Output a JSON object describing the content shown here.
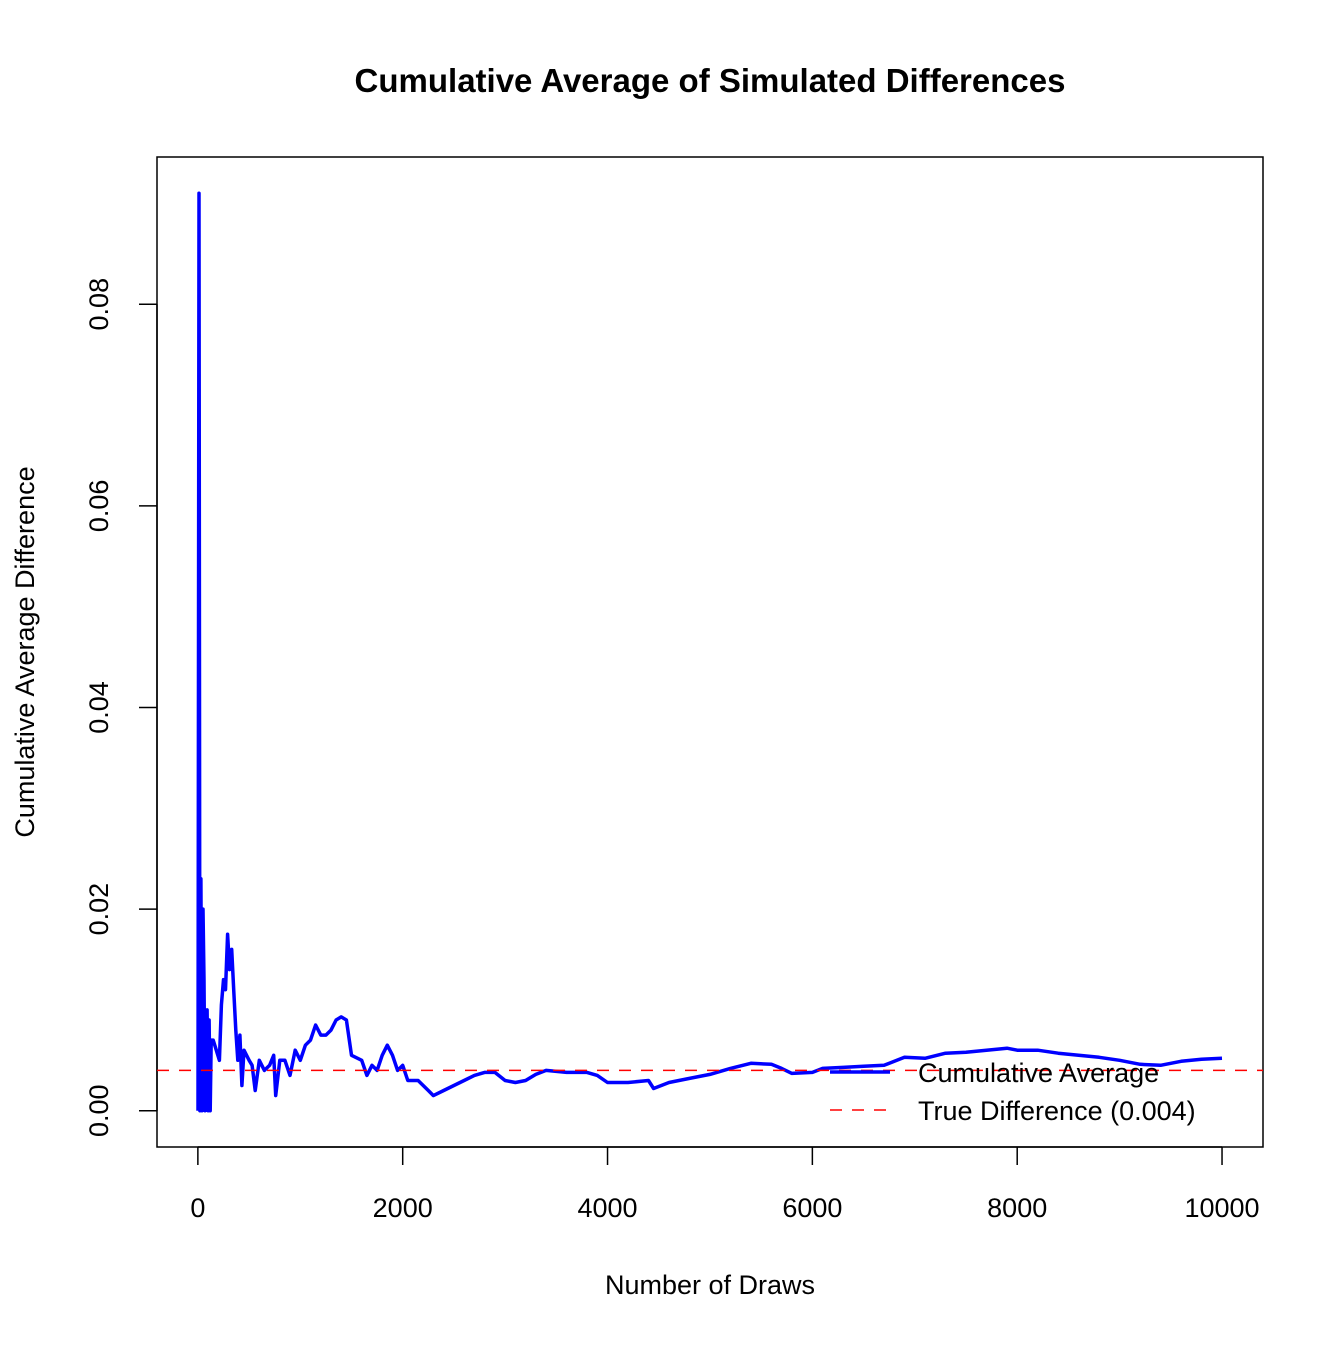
{
  "chart_data": {
    "type": "line",
    "title": "Cumulative Average of Simulated Differences",
    "x_label": "Number of Draws",
    "y_label": "Cumulative Average Difference",
    "xlim": [
      -399,
      10400
    ],
    "ylim": [
      -0.0036,
      0.0946
    ],
    "xticks": [
      0,
      2000,
      4000,
      6000,
      8000,
      10000
    ],
    "yticks": [
      {
        "value": 0,
        "label": "0.00"
      },
      {
        "value": 0.02,
        "label": "0.02"
      },
      {
        "value": 0.04,
        "label": "0.04"
      },
      {
        "value": 0.06,
        "label": "0.06"
      },
      {
        "value": 0.08,
        "label": "0.08"
      }
    ],
    "legend_position": "bottomright",
    "series": [
      {
        "name": "Cumulative Average",
        "color": "#0000ff",
        "x": [
          1,
          11,
          20,
          30,
          40,
          50,
          60,
          70,
          90,
          100,
          110,
          120,
          130,
          150,
          180,
          210,
          230,
          250,
          270,
          290,
          310,
          330,
          350,
          370,
          390,
          410,
          430,
          450,
          500,
          530,
          560,
          600,
          650,
          700,
          740,
          760,
          800,
          850,
          900,
          950,
          1000,
          1050,
          1100,
          1150,
          1200,
          1250,
          1300,
          1350,
          1400,
          1450,
          1500,
          1600,
          1650,
          1700,
          1750,
          1800,
          1850,
          1900,
          1950,
          2000,
          2050,
          2150,
          2200,
          2250,
          2300,
          2400,
          2500,
          2600,
          2700,
          2800,
          2900,
          3000,
          3100,
          3200,
          3300,
          3400,
          3600,
          3800,
          3900,
          4000,
          4200,
          4400,
          4450,
          4600,
          4800,
          5000,
          5200,
          5400,
          5600,
          5700,
          5800,
          6000,
          6100,
          6300,
          6500,
          6700,
          6900,
          7100,
          7300,
          7500,
          7700,
          7900,
          8000,
          8200,
          8400,
          8600,
          8800,
          9000,
          9200,
          9400,
          9600,
          9800,
          10000
        ],
        "values": [
          0,
          0.091,
          0,
          0.023,
          0,
          0.02,
          0.013,
          0,
          0.01,
          0,
          0.009,
          0,
          0.007,
          0.007,
          0.006,
          0.005,
          0.0105,
          0.013,
          0.012,
          0.0175,
          0.014,
          0.016,
          0.012,
          0.008,
          0.005,
          0.0075,
          0.0025,
          0.006,
          0.005,
          0.0045,
          0.002,
          0.005,
          0.004,
          0.0045,
          0.0055,
          0.0015,
          0.005,
          0.005,
          0.0035,
          0.006,
          0.005,
          0.0065,
          0.007,
          0.0085,
          0.0075,
          0.0075,
          0.008,
          0.009,
          0.0093,
          0.009,
          0.0055,
          0.005,
          0.0035,
          0.0045,
          0.004,
          0.0055,
          0.0065,
          0.0055,
          0.004,
          0.0045,
          0.003,
          0.003,
          0.0025,
          0.002,
          0.0015,
          0.002,
          0.0025,
          0.003,
          0.0035,
          0.0038,
          0.0038,
          0.003,
          0.0028,
          0.003,
          0.0036,
          0.004,
          0.0038,
          0.0038,
          0.0035,
          0.0028,
          0.0028,
          0.003,
          0.0022,
          0.0028,
          0.0032,
          0.0036,
          0.0042,
          0.0047,
          0.0046,
          0.0042,
          0.0037,
          0.0038,
          0.0042,
          0.0043,
          0.0044,
          0.0045,
          0.0053,
          0.0052,
          0.0057,
          0.0058,
          0.006,
          0.0062,
          0.006,
          0.006,
          0.0057,
          0.0055,
          0.0053,
          0.005,
          0.0046,
          0.0045,
          0.0049,
          0.0051,
          0.0052
        ]
      }
    ],
    "reference_line": {
      "name": "True Difference (0.004)",
      "value": 0.004,
      "color": "#ff0000",
      "dashed": true
    }
  }
}
